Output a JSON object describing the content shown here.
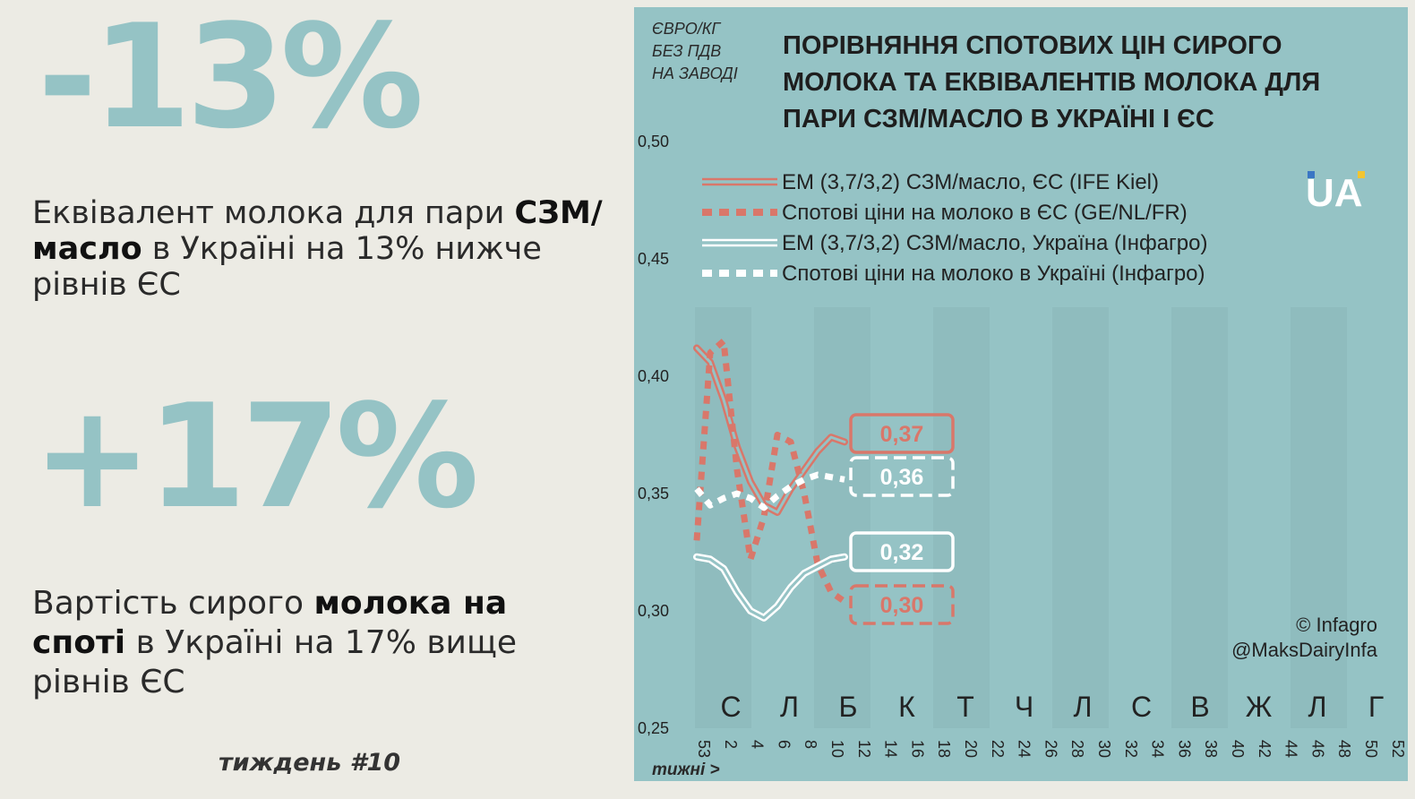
{
  "left": {
    "stat1": "-13%",
    "desc1": {
      "pre": "Еквівалент молока для пари ",
      "bold": "СЗМ/масло",
      "post": " в Україні на 13% нижче рівнів ЄС"
    },
    "stat2": "+17%",
    "desc2": {
      "pre": "Вартість сирого ",
      "bold1": "молока на споті",
      "post": " в Україні на 17% вище рівнів ЄС"
    },
    "week": "тиждень #10"
  },
  "chart_data": {
    "type": "line",
    "title": "ПОРІВНЯННЯ СПОТОВИХ ЦІН СИРОГО МОЛОКА ТА ЕКВІВАЛЕНТІВ МОЛОКА ДЛЯ ПАРИ СЗМ/МАСЛО В УКРАЇНІ І ЄС",
    "title_lines": [
      "ПОРІВНЯННЯ СПОТОВИХ ЦІН СИРОГО",
      "МОЛОКА ТА ЕКВІВАЛЕНТІВ МОЛОКА ДЛЯ",
      "ПАРИ СЗМ/МАСЛО В УКРАЇНІ І ЄС"
    ],
    "ylabel_lines": [
      "ЄВРО/КГ",
      "БЕЗ ПДВ",
      "НА ЗАВОДІ"
    ],
    "xlabel": "тижні >",
    "ylim": [
      0.25,
      0.5
    ],
    "yticks": [
      "0,25",
      "0,30",
      "0,35",
      "0,40",
      "0,45",
      "0,50"
    ],
    "ytick_values": [
      0.25,
      0.3,
      0.35,
      0.4,
      0.45,
      0.5
    ],
    "xticks": [
      "53",
      "2",
      "4",
      "6",
      "8",
      "10",
      "12",
      "14",
      "16",
      "18",
      "20",
      "22",
      "24",
      "26",
      "28",
      "30",
      "32",
      "34",
      "36",
      "38",
      "40",
      "42",
      "44",
      "46",
      "48",
      "50",
      "52"
    ],
    "months": [
      "С",
      "Л",
      "Б",
      "К",
      "Т",
      "Ч",
      "Л",
      "С",
      "В",
      "Ж",
      "Л",
      "Г"
    ],
    "series": [
      {
        "name": "ЕМ (3,7/3,2) СЗМ/масло, ЄС (IFE Kiel)",
        "color": "#d9776a",
        "style": "double",
        "x": [
          0,
          1,
          2,
          3,
          4,
          5,
          6,
          7,
          8,
          9,
          10,
          11
        ],
        "y": [
          0.412,
          0.406,
          0.39,
          0.37,
          0.355,
          0.345,
          0.342,
          0.352,
          0.36,
          0.368,
          0.374,
          0.372
        ]
      },
      {
        "name": "Спотові ціни на молоко в ЄС (GE/NL/FR)",
        "color": "#d9776a",
        "style": "dotted",
        "x": [
          0,
          1,
          2,
          3,
          4,
          5,
          6,
          7,
          8,
          9,
          10,
          11
        ],
        "y": [
          0.33,
          0.41,
          0.415,
          0.36,
          0.322,
          0.34,
          0.375,
          0.372,
          0.35,
          0.32,
          0.308,
          0.304
        ]
      },
      {
        "name": "ЕМ (3,7/3,2) СЗМ/масло, Україна (Інфагро)",
        "color": "#ffffff",
        "style": "double",
        "x": [
          0,
          1,
          2,
          3,
          4,
          5,
          6,
          7,
          8,
          9,
          10,
          11
        ],
        "y": [
          0.323,
          0.322,
          0.318,
          0.308,
          0.3,
          0.297,
          0.302,
          0.31,
          0.316,
          0.319,
          0.322,
          0.323
        ]
      },
      {
        "name": "Спотові ціни на молоко в Україні (Інфагро)",
        "color": "#ffffff",
        "style": "dotted",
        "x": [
          0,
          1,
          2,
          3,
          4,
          5,
          6,
          7,
          8,
          9,
          10,
          11
        ],
        "y": [
          0.352,
          0.345,
          0.348,
          0.35,
          0.348,
          0.344,
          0.349,
          0.353,
          0.356,
          0.358,
          0.357,
          0.356
        ]
      }
    ],
    "end_labels": [
      {
        "text": "0,37",
        "color": "#d9776a",
        "style": "solid"
      },
      {
        "text": "0,36",
        "color": "#ffffff",
        "style": "dashed"
      },
      {
        "text": "0,32",
        "color": "#ffffff",
        "style": "solid"
      },
      {
        "text": "0,30",
        "color": "#d9776a",
        "style": "dashed"
      }
    ],
    "logo": "UA",
    "credit": [
      "© Infagro",
      "@MaksDairyInfa"
    ]
  },
  "colors": {
    "panel": "#95c3c5",
    "accent_big": "#95c3c5",
    "eu": "#d9776a",
    "ua": "#ffffff",
    "band": "#8fbcbe"
  }
}
